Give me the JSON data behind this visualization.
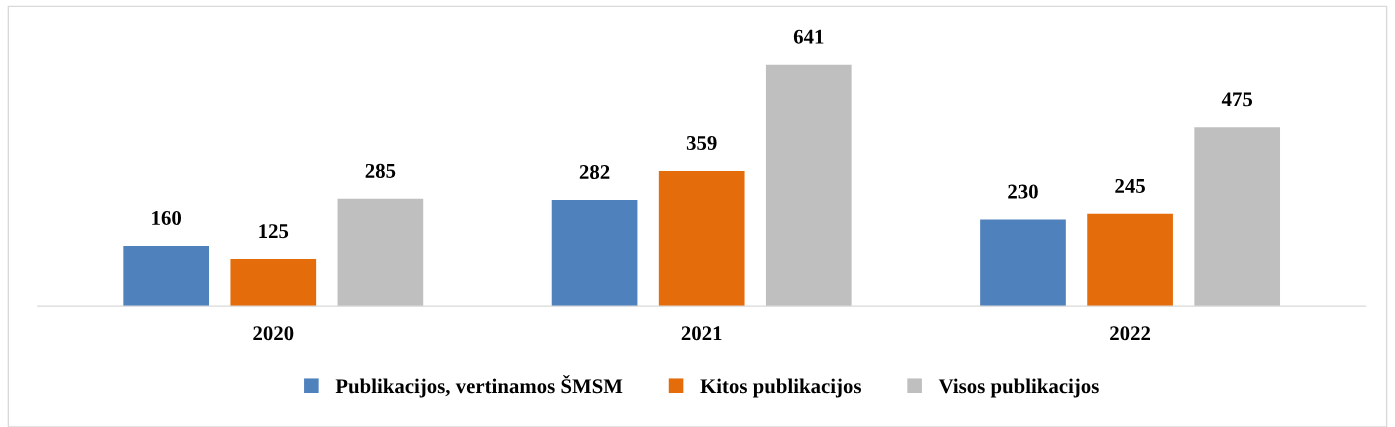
{
  "chart_data": {
    "type": "bar",
    "categories": [
      "2020",
      "2021",
      "2022"
    ],
    "series": [
      {
        "name": "Publikacijos, vertinamos ŠMSM",
        "color": "#4f81bd",
        "values": [
          160,
          282,
          230
        ]
      },
      {
        "name": "Kitos publikacijos",
        "color": "#e46c0a",
        "values": [
          125,
          359,
          245
        ]
      },
      {
        "name": "Visos publikacijos",
        "color": "#bfbfbf",
        "values": [
          285,
          641,
          475
        ]
      }
    ],
    "data_labels": true,
    "legend": "bottom"
  }
}
